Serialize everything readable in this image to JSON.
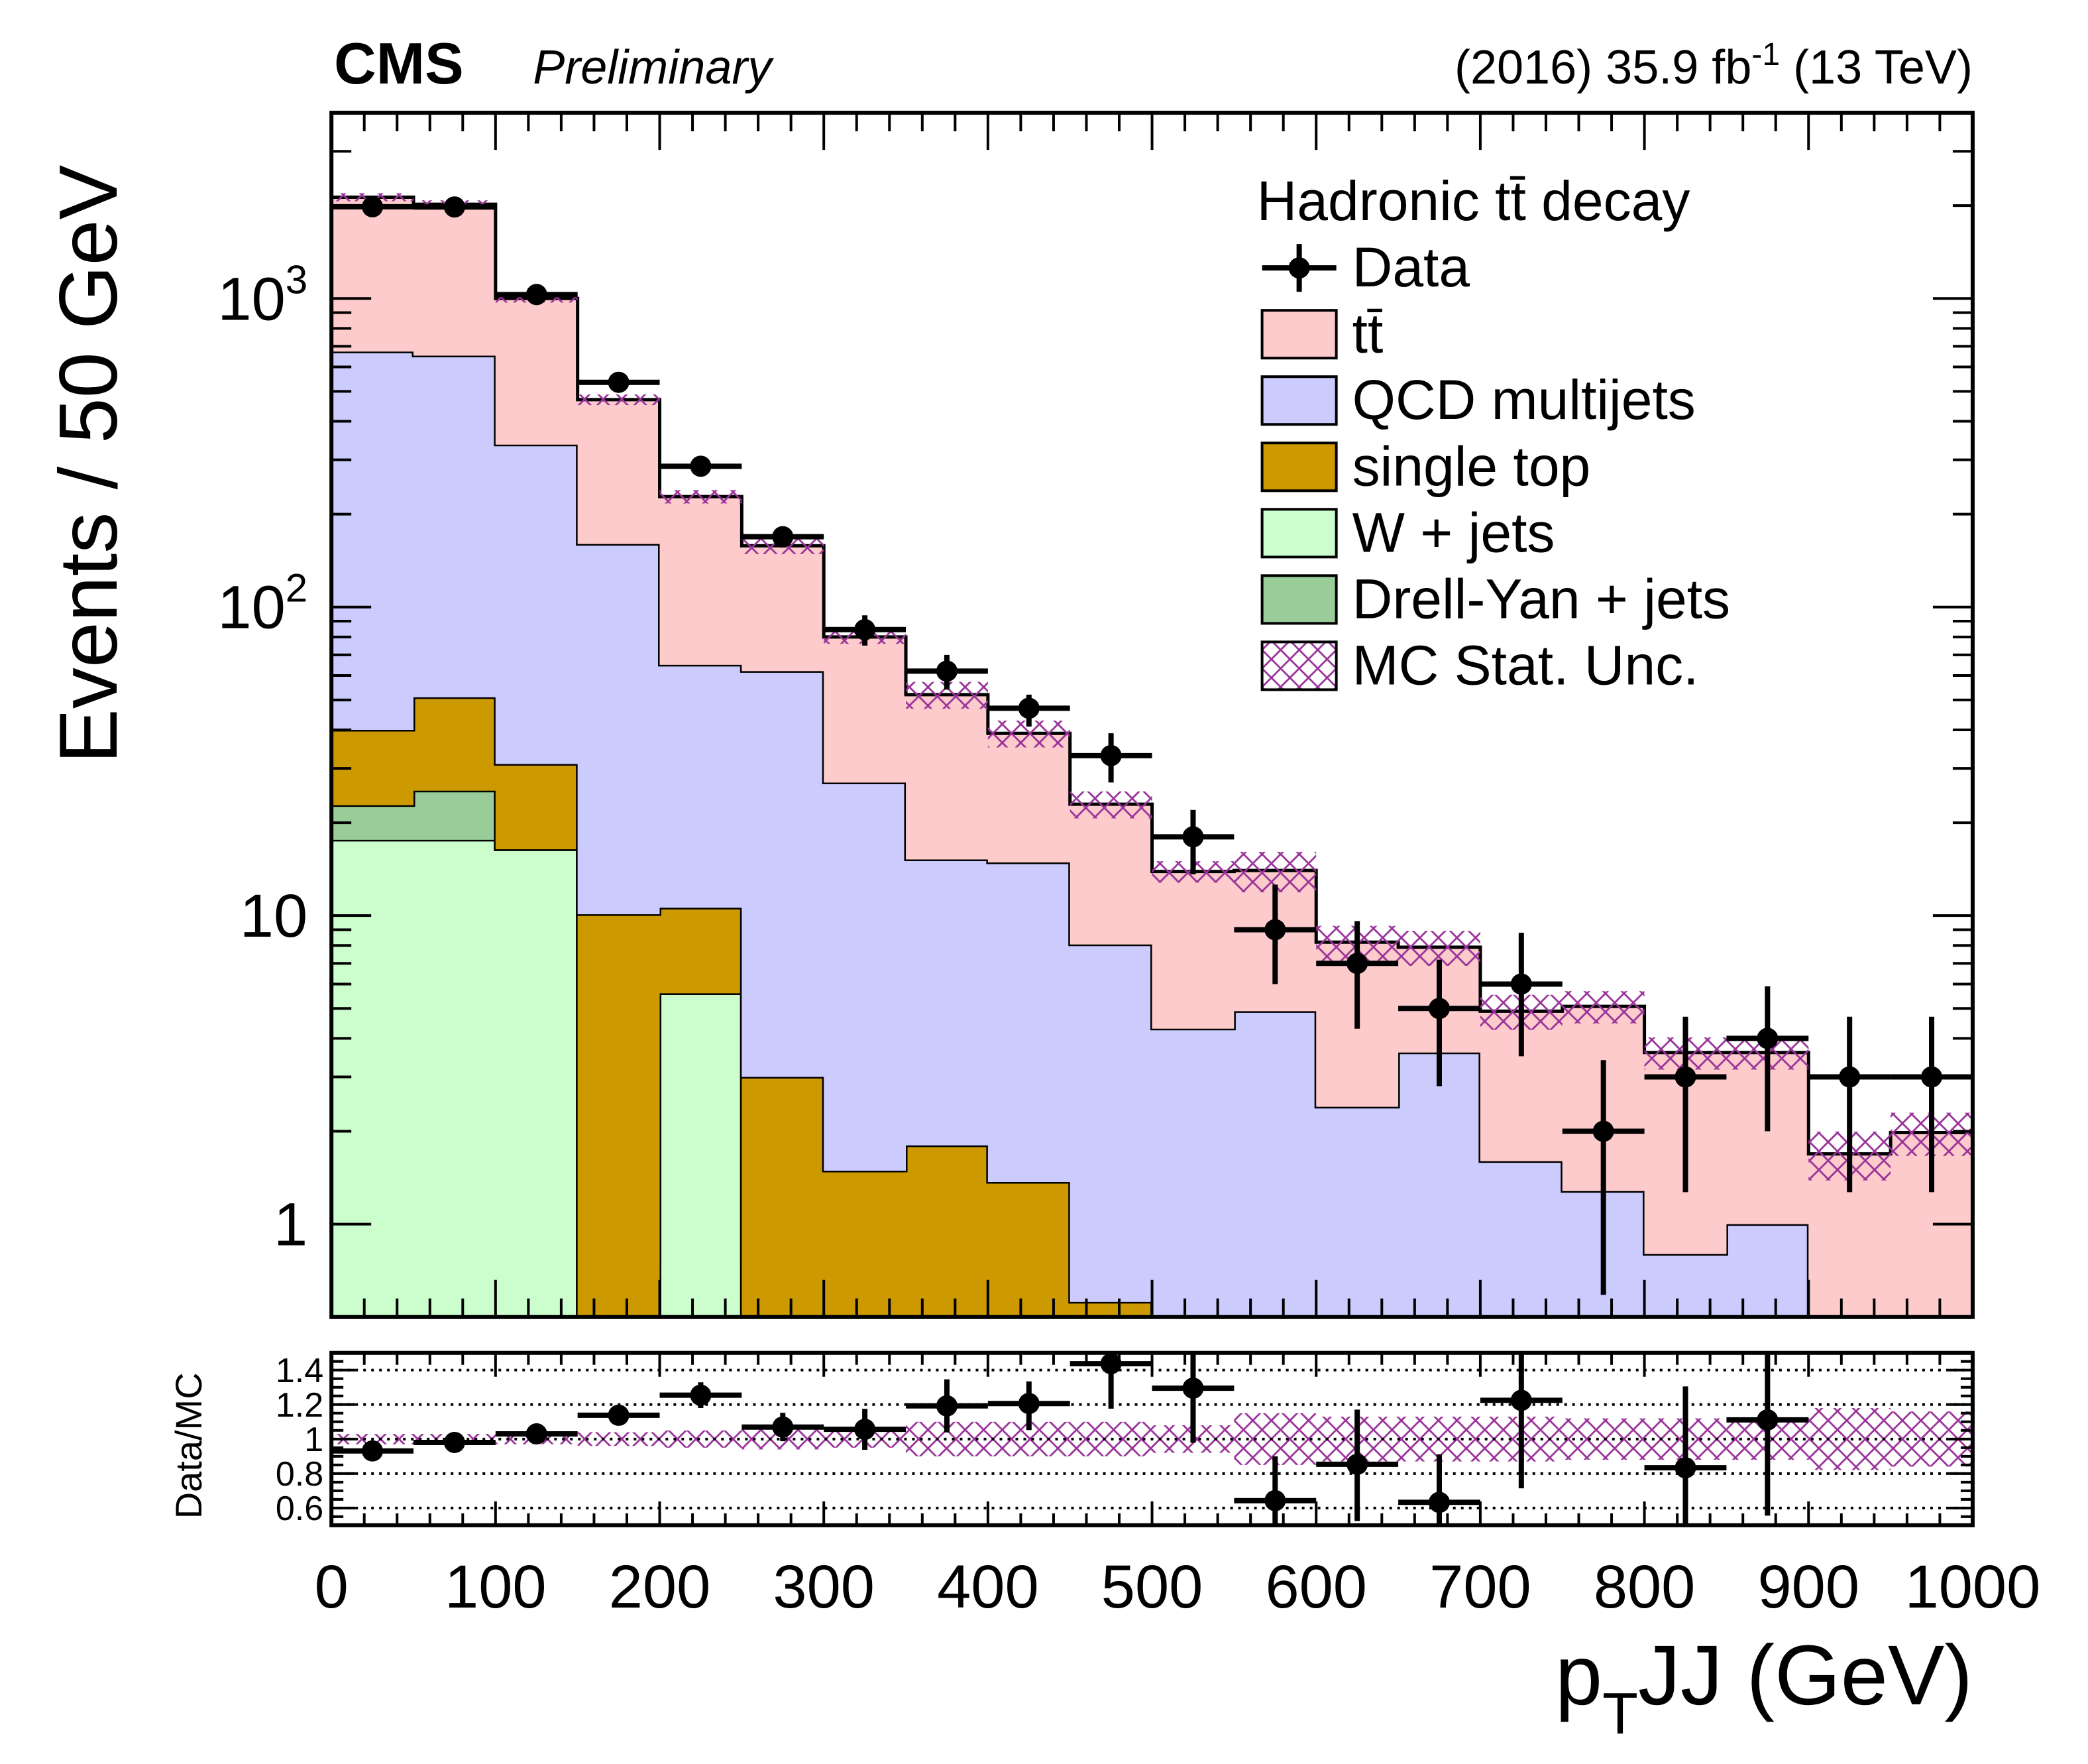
{
  "header": {
    "experiment": "CMS",
    "status": "Preliminary",
    "lumi_prefix": "(2016) 35.9 fb",
    "lumi_sup": "-1",
    "lumi_suffix": " (13 TeV)"
  },
  "chart_data": {
    "type": "bar",
    "stacked": true,
    "log_y": true,
    "title": "",
    "xlabel": {
      "main": "p",
      "sub": "T",
      "rest": "JJ (GeV)"
    },
    "ylabel": "Events / 50 GeV",
    "xlim": [
      0,
      1000
    ],
    "ylim": [
      0.5,
      4000
    ],
    "bin_edges": [
      0,
      50,
      100,
      150,
      200,
      250,
      300,
      350,
      400,
      450,
      500,
      550,
      600,
      650,
      700,
      750,
      800,
      850,
      900,
      950,
      1000
    ],
    "x_ticks": [
      "0",
      "100",
      "200",
      "300",
      "400",
      "500",
      "600",
      "700",
      "800",
      "900",
      "1000"
    ],
    "y_ticks": [
      {
        "value": 1,
        "base": "1",
        "exp": ""
      },
      {
        "value": 10,
        "base": "10",
        "exp": ""
      },
      {
        "value": 100,
        "base": "10",
        "exp": "2"
      },
      {
        "value": 1000,
        "base": "10",
        "exp": "3"
      }
    ],
    "legend": {
      "title": "Hadronic tt̄ decay",
      "placement": "top-right",
      "entries": [
        {
          "label": "Data",
          "kind": "data"
        },
        {
          "label": "tt̄",
          "kind": "fill",
          "color": "#fdcbcb"
        },
        {
          "label": "QCD multijets",
          "kind": "fill",
          "color": "#cbcbfd"
        },
        {
          "label": "single top",
          "kind": "fill",
          "color": "#cc9900"
        },
        {
          "label": "W + jets",
          "kind": "fill",
          "color": "#ccfdcc"
        },
        {
          "label": "Drell-Yan + jets",
          "kind": "fill",
          "color": "#99cc99"
        },
        {
          "label": "MC Stat. Unc.",
          "kind": "hatch",
          "color": "#993399"
        }
      ]
    },
    "series": [
      {
        "name": "W + jets",
        "color": "#ccfdcc",
        "values": [
          17.6,
          17.6,
          16.4,
          0,
          5.6,
          0,
          0,
          0,
          0,
          0,
          0,
          0,
          0,
          0,
          0,
          0,
          0,
          0,
          0,
          0
        ]
      },
      {
        "name": "Drell-Yan + jets",
        "color": "#99cc99",
        "values": [
          5.2,
          7.8,
          0,
          0,
          0,
          0,
          0,
          0,
          0,
          0,
          0,
          0,
          0,
          0,
          0,
          0,
          0,
          0,
          0,
          0
        ]
      },
      {
        "name": "single top",
        "color": "#cc9900",
        "values": [
          17.2,
          25.6,
          14.6,
          10.1,
          5.0,
          3.0,
          1.49,
          1.8,
          1.37,
          0.56,
          0,
          0,
          0,
          0,
          0,
          0,
          0,
          0,
          0,
          0
        ]
      },
      {
        "name": "QCD multijets",
        "color": "#cbcbfd",
        "values": [
          633,
          602,
          305,
          150,
          54.4,
          59,
          25.5,
          13.4,
          13.5,
          7.5,
          4.3,
          4.9,
          2.4,
          3.6,
          1.6,
          1.28,
          0.8,
          1.0,
          0,
          0
        ]
      },
      {
        "name": "tt̄",
        "color": "#fdcbcb",
        "values": [
          1457,
          1367,
          664,
          310,
          163,
          96,
          53,
          36.8,
          24.1,
          14.9,
          9.6,
          9.1,
          5.8,
          4.3,
          3.3,
          3.8,
          2.8,
          2.6,
          1.69,
          1.98
        ]
      }
    ],
    "mc_stat_unc_rel": [
      0.03,
      0.03,
      0.03,
      0.04,
      0.05,
      0.06,
      0.05,
      0.1,
      0.1,
      0.1,
      0.08,
      0.15,
      0.13,
      0.13,
      0.13,
      0.12,
      0.12,
      0.12,
      0.18,
      0.16
    ],
    "data": {
      "values": [
        1983,
        1980,
        1030,
        535,
        286,
        169,
        84.5,
        62,
        47,
        33,
        18,
        9,
        7,
        5,
        6,
        2,
        3,
        4,
        3,
        3
      ],
      "err_up": [
        2028,
        2025,
        1062,
        558,
        303,
        182,
        94,
        70,
        52,
        39,
        22,
        12.6,
        9.6,
        7.2,
        8.8,
        3.4,
        4.7,
        5.9,
        4.7,
        4.7
      ],
      "err_down": [
        1938,
        1935,
        998,
        512,
        269,
        156,
        75,
        54,
        41,
        27,
        13.6,
        6,
        4.3,
        2.8,
        3.5,
        0.59,
        1.27,
        2,
        1.27,
        1.27
      ]
    },
    "ratio": {
      "ylabel": "Data/MC",
      "ylim": [
        0.5,
        1.5
      ],
      "y_ticks": [
        "0.6",
        "0.8",
        "1",
        "1.2",
        "1.4"
      ],
      "grid": "dotted"
    }
  }
}
